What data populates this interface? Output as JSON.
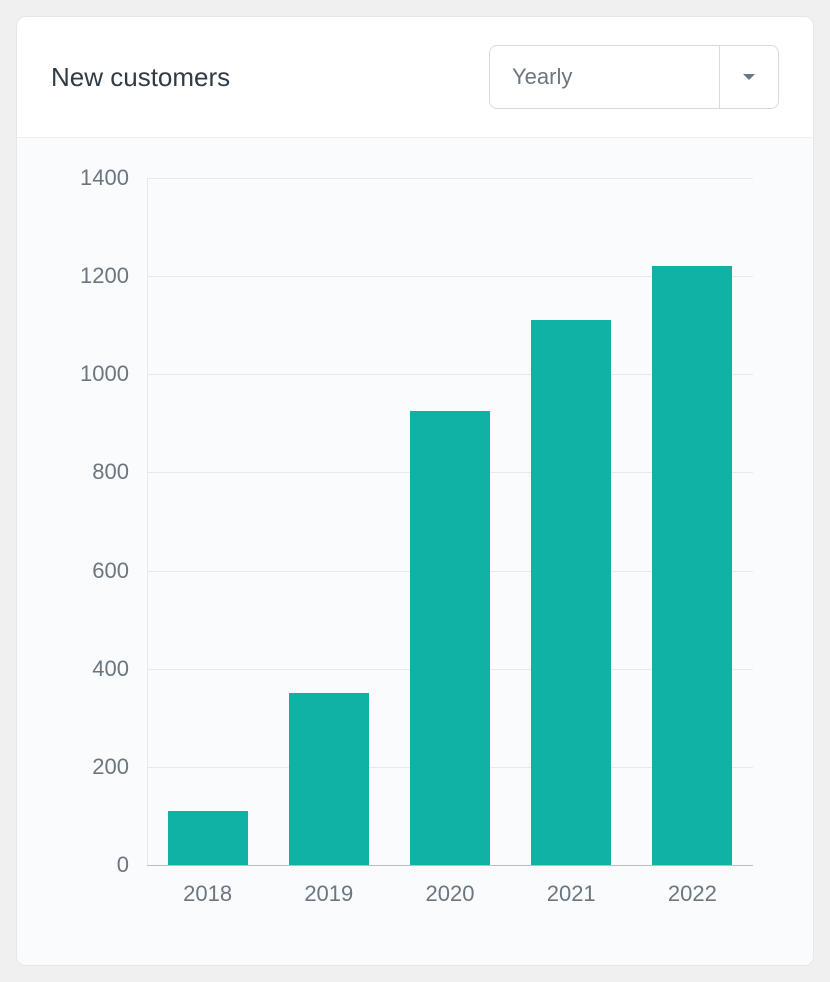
{
  "header": {
    "title": "New customers",
    "select_value": "Yearly"
  },
  "chart": {
    "type": "bar",
    "categories": [
      "2018",
      "2019",
      "2020",
      "2021",
      "2022"
    ],
    "values": [
      110,
      350,
      925,
      1110,
      1220
    ],
    "bar_color": "#10b2a5",
    "ylim": [
      0,
      1400
    ],
    "ytick_step": 200,
    "y_ticks": [
      0,
      200,
      400,
      600,
      800,
      1000,
      1200,
      1400
    ],
    "background_color": "#fafbfc",
    "grid_color": "#e7e9eb",
    "baseline_color": "#b9bfc4",
    "axis_label_color": "#6b7680",
    "axis_label_fontsize": 22,
    "bar_width": 0.66
  }
}
